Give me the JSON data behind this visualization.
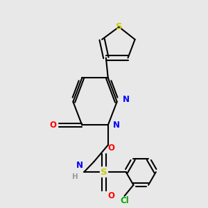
{
  "bg_color": "#e8e8e8",
  "bond_color": "#000000",
  "atom_colors": {
    "S": "#cccc00",
    "N": "#0000ff",
    "O": "#ff0000",
    "Cl": "#00aa00",
    "C": "#000000",
    "H": "#999999"
  },
  "lw": 1.5,
  "fs": 8.5,
  "xlim": [
    0.0,
    1.0
  ],
  "ylim": [
    0.0,
    1.0
  ]
}
